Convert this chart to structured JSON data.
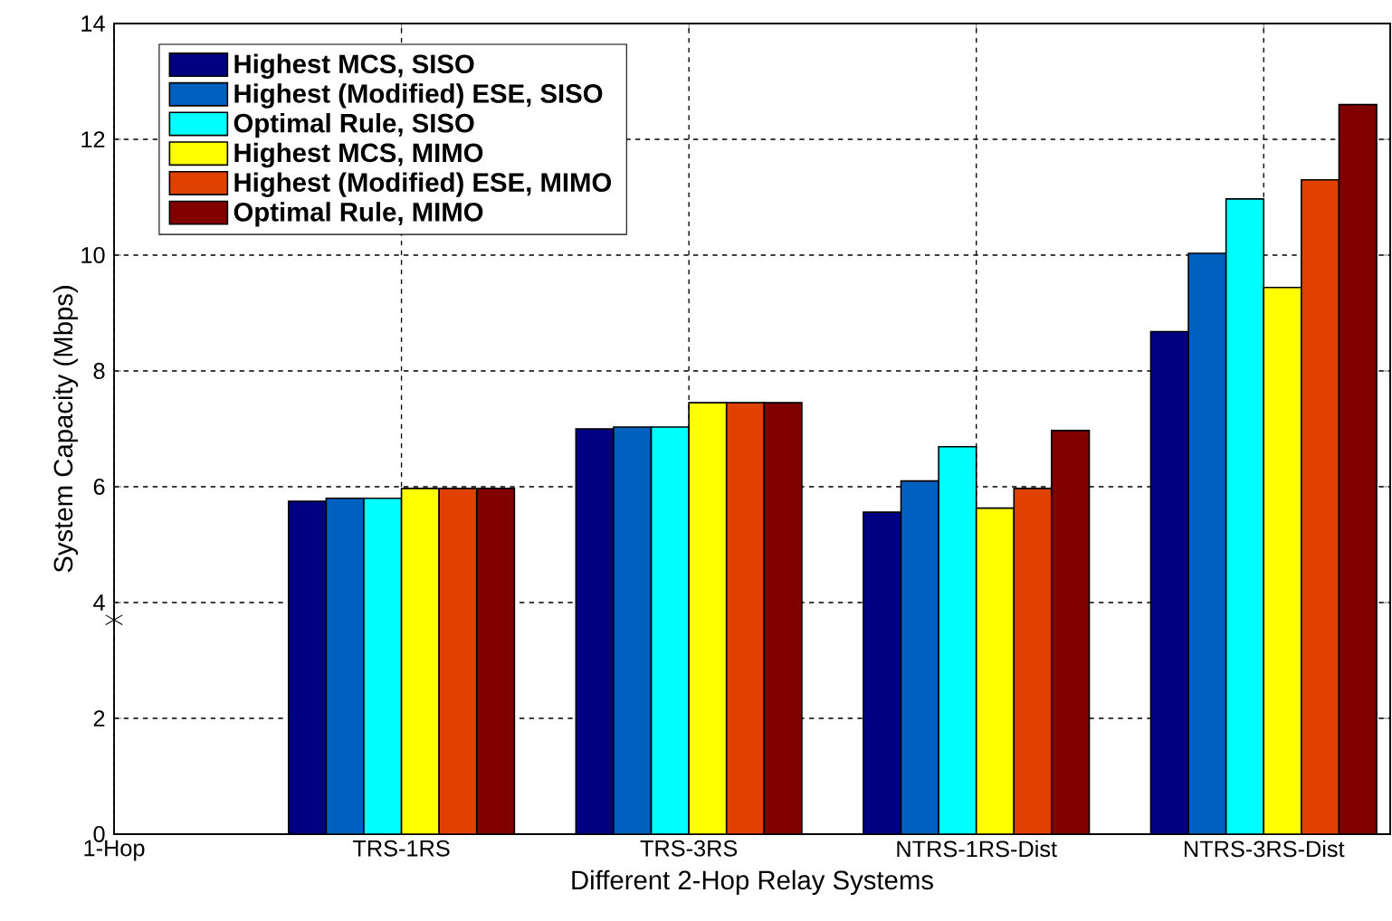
{
  "chart_data": {
    "type": "bar",
    "xlabel": "Different 2-Hop Relay Systems",
    "ylabel": "System Capacity (Mbps)",
    "categories": [
      "1-Hop",
      "TRS-1RS",
      "TRS-3RS",
      "NTRS-1RS-Dist",
      "NTRS-3RS-Dist"
    ],
    "series": [
      {
        "name": "Highest MCS, SISO",
        "color": "#000080",
        "values": [
          null,
          5.75,
          7.0,
          5.56,
          8.68
        ]
      },
      {
        "name": "Highest (Modified) ESE, SISO",
        "color": "#0060c0",
        "values": [
          null,
          5.8,
          7.03,
          6.1,
          10.03
        ]
      },
      {
        "name": "Optimal Rule, SISO",
        "color": "#00ffff",
        "values": [
          null,
          5.8,
          7.03,
          6.69,
          10.97
        ]
      },
      {
        "name": "Highest MCS, MIMO",
        "color": "#ffff00",
        "values": [
          null,
          5.97,
          7.45,
          5.63,
          9.44
        ]
      },
      {
        "name": "Highest (Modified) ESE, MIMO",
        "color": "#e04000",
        "values": [
          null,
          5.97,
          7.45,
          5.97,
          11.3
        ]
      },
      {
        "name": "Optimal Rule, MIMO",
        "color": "#800000",
        "values": [
          null,
          5.97,
          7.45,
          6.97,
          12.6
        ]
      },
      {
        "type": "scatter",
        "color": "#000000",
        "marker": "cross",
        "x": [
          "1-Hop"
        ],
        "values": [
          3.7
        ]
      }
    ],
    "ylim": [
      0,
      14
    ],
    "yticks": [
      0,
      2,
      4,
      6,
      8,
      10,
      12,
      14
    ],
    "grid": true,
    "legend": "top left"
  }
}
